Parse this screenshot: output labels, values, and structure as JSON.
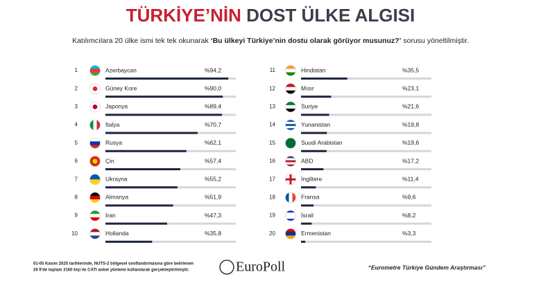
{
  "chart_data": {
    "type": "bar",
    "title_parts": [
      "TÜRKİYE’NİN",
      "DOST ÜLKE ALGISI"
    ],
    "subtitle_parts": [
      "Katılımcılara 20 ülke ismi tek tek okunarak ",
      "‘Bu ülkeyi Türkiye’nin dostu olarak görüyor musunuz?’",
      " sorusu yöneltilmiştir."
    ],
    "ranks": [
      "1",
      "2",
      "3",
      "4",
      "5",
      "6",
      "7",
      "8",
      "9",
      "10",
      "11",
      "12",
      "13",
      "14",
      "15",
      "16",
      "17",
      "18",
      "19",
      "20"
    ],
    "categories": [
      "Azerbaycan",
      "Güney Kore",
      "Japonya",
      "İtalya",
      "Rusya",
      "Çin",
      "Ukrayna",
      "Almanya",
      "İran",
      "Hollanda",
      "Hindistan",
      "Mısır",
      "Suriye",
      "Yunanistan",
      "Suudi Arabistan",
      "ABD",
      "İngiltere",
      "Fransa",
      "İsrail",
      "Ermenistan"
    ],
    "values": [
      94.2,
      90.0,
      89.4,
      70.7,
      62.1,
      57.4,
      55.2,
      51.9,
      47.3,
      35.8,
      35.5,
      23.1,
      21.6,
      19.8,
      19.6,
      17.2,
      11.4,
      9.6,
      8.2,
      3.3
    ],
    "value_labels": [
      "%94,2",
      "%90,0",
      "%89,4",
      "%70,7",
      "%62,1",
      "%57,4",
      "%55,2",
      "%51,9",
      "%47,3",
      "%35,8",
      "%35,5",
      "%23,1",
      "%21,6",
      "%19,8",
      "%19,6",
      "%17,2",
      "%11,4",
      "%9,6",
      "%8,2",
      "%3,3"
    ],
    "xlim": [
      0,
      100
    ],
    "color": "#1e2640",
    "track_color": "#d4d6da",
    "flags": [
      "h:#00b5e2,#ef3340,#509e2f",
      "d:#ffffff,#cd2e3a",
      "d:#ffffff,#bc002d",
      "v:#009246,#ffffff,#ce2b37",
      "h:#ffffff,#0039a6,#d52b1e",
      "d:#de2910,#ffde00",
      "h:#0057b7,#ffd700",
      "h:#000000,#dd0000,#ffce00",
      "h:#239f40,#ffffff,#da0000",
      "h:#ae1c28,#ffffff,#21468b",
      "h:#ff9933,#ffffff,#138808",
      "h:#ce1126,#ffffff,#000000",
      "h:#007a3d,#ffffff,#000000",
      "h:#0d5eaf,#ffffff,#0d5eaf,#ffffff,#0d5eaf",
      "h:#006c35",
      "h:#3c3b6e,#ffffff,#b22234,#ffffff,#b22234",
      "c:#ffffff,#ce1124",
      "v:#0055a4,#ffffff,#ef4135",
      "h:#0038b8,#ffffff,#ffffff,#ffffff,#0038b8",
      "h:#d90012,#0033a0,#f2a800"
    ]
  },
  "footer": {
    "note": [
      "01-05 Kasım 2025 tarihlerinde, NUTS-2 bölgesel sınıflandırmasına göre belirlenen",
      "26 İl'de toplam 3160 kişi ile CATI anket yöntemi kullanılarak gerçekleştirilmiştir."
    ],
    "logo": "EuroPoll",
    "source": "“Eurometre Türkiye Gündem Araştırması”"
  }
}
